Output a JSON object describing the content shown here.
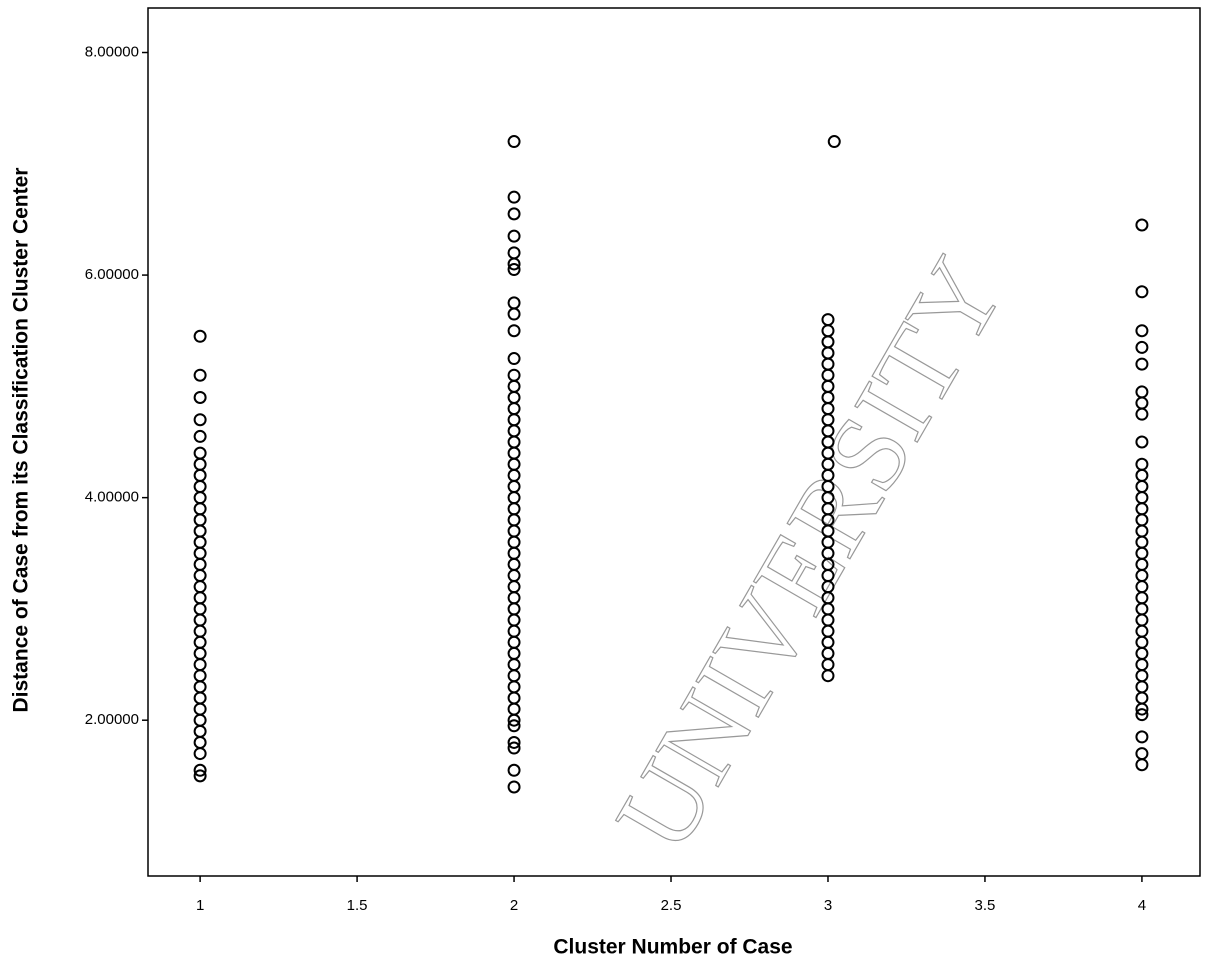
{
  "chart_data": {
    "type": "scatter",
    "x_label": "Cluster Number of Case",
    "y_label": "Distance of Case from its Classification Cluster Center",
    "watermark": "UNIVERSITY",
    "color": "#000000",
    "xlim": [
      0.834,
      4.185
    ],
    "ylim": [
      0.6,
      8.4
    ],
    "xticks": [
      1,
      1.5,
      2,
      2.5,
      3,
      3.5,
      4
    ],
    "yticks": [
      {
        "value": 2,
        "label": "2.00000"
      },
      {
        "value": 4,
        "label": "4.00000"
      },
      {
        "value": 6,
        "label": "6.00000"
      },
      {
        "value": 8,
        "label": "8.00000"
      }
    ],
    "series": [
      {
        "x": [
          1,
          1,
          1,
          1,
          1,
          1,
          1,
          1,
          1,
          1,
          1,
          1,
          1,
          1,
          1,
          1,
          1,
          1,
          1,
          1,
          1,
          1,
          1,
          1,
          1,
          1,
          1,
          1,
          1,
          1,
          1,
          1,
          1,
          1,
          1
        ],
        "values": [
          1.5,
          1.55,
          1.7,
          1.8,
          1.9,
          2.0,
          2.1,
          2.2,
          2.3,
          2.4,
          2.5,
          2.6,
          2.7,
          2.8,
          2.9,
          3.0,
          3.1,
          3.2,
          3.3,
          3.4,
          3.5,
          3.6,
          3.7,
          3.8,
          3.9,
          4.0,
          4.1,
          4.2,
          4.3,
          4.4,
          4.55,
          4.7,
          4.9,
          5.1,
          5.45
        ]
      },
      {
        "x": [
          2,
          2,
          2,
          2,
          2,
          2,
          2,
          2,
          2,
          2,
          2,
          2,
          2,
          2,
          2,
          2,
          2,
          2,
          2,
          2,
          2,
          2,
          2,
          2,
          2,
          2,
          2,
          2,
          2,
          2,
          2,
          2,
          2,
          2,
          2,
          2,
          2,
          2,
          2,
          2,
          2,
          2,
          2,
          2,
          2,
          2,
          2,
          2
        ],
        "values": [
          1.4,
          1.55,
          1.75,
          1.8,
          1.95,
          2.0,
          2.1,
          2.2,
          2.3,
          2.4,
          2.5,
          2.6,
          2.7,
          2.8,
          2.9,
          3.0,
          3.1,
          3.2,
          3.3,
          3.4,
          3.5,
          3.6,
          3.7,
          3.8,
          3.9,
          4.0,
          4.1,
          4.2,
          4.3,
          4.4,
          4.5,
          4.6,
          4.7,
          4.8,
          4.9,
          5.0,
          5.1,
          5.25,
          5.5,
          5.65,
          5.75,
          6.05,
          6.1,
          6.2,
          6.35,
          6.55,
          6.7,
          7.2
        ]
      },
      {
        "x": [
          3,
          3,
          3,
          3,
          3,
          3,
          3,
          3,
          3,
          3,
          3,
          3,
          3,
          3,
          3,
          3,
          3,
          3,
          3,
          3,
          3,
          3,
          3,
          3,
          3,
          3,
          3,
          3,
          3,
          3,
          3,
          3,
          3,
          3.02
        ],
        "values": [
          2.4,
          2.5,
          2.6,
          2.7,
          2.8,
          2.9,
          3.0,
          3.1,
          3.2,
          3.3,
          3.4,
          3.5,
          3.6,
          3.7,
          3.8,
          3.9,
          4.0,
          4.1,
          4.2,
          4.3,
          4.4,
          4.5,
          4.6,
          4.7,
          4.8,
          4.9,
          5.0,
          5.1,
          5.2,
          5.3,
          5.4,
          5.5,
          5.6,
          7.2
        ]
      },
      {
        "x": [
          4,
          4,
          4,
          4,
          4,
          4,
          4,
          4,
          4,
          4,
          4,
          4,
          4,
          4,
          4,
          4,
          4,
          4,
          4,
          4,
          4,
          4,
          4,
          4,
          4,
          4,
          4,
          4,
          4,
          4,
          4,
          4,
          4,
          4,
          4,
          4
        ],
        "values": [
          1.6,
          1.7,
          1.85,
          2.05,
          2.1,
          2.2,
          2.3,
          2.4,
          2.5,
          2.6,
          2.7,
          2.8,
          2.9,
          3.0,
          3.1,
          3.2,
          3.3,
          3.4,
          3.5,
          3.6,
          3.7,
          3.8,
          3.9,
          4.0,
          4.1,
          4.2,
          4.3,
          4.5,
          4.75,
          4.85,
          4.95,
          5.2,
          5.35,
          5.5,
          5.85,
          6.45
        ]
      }
    ]
  }
}
